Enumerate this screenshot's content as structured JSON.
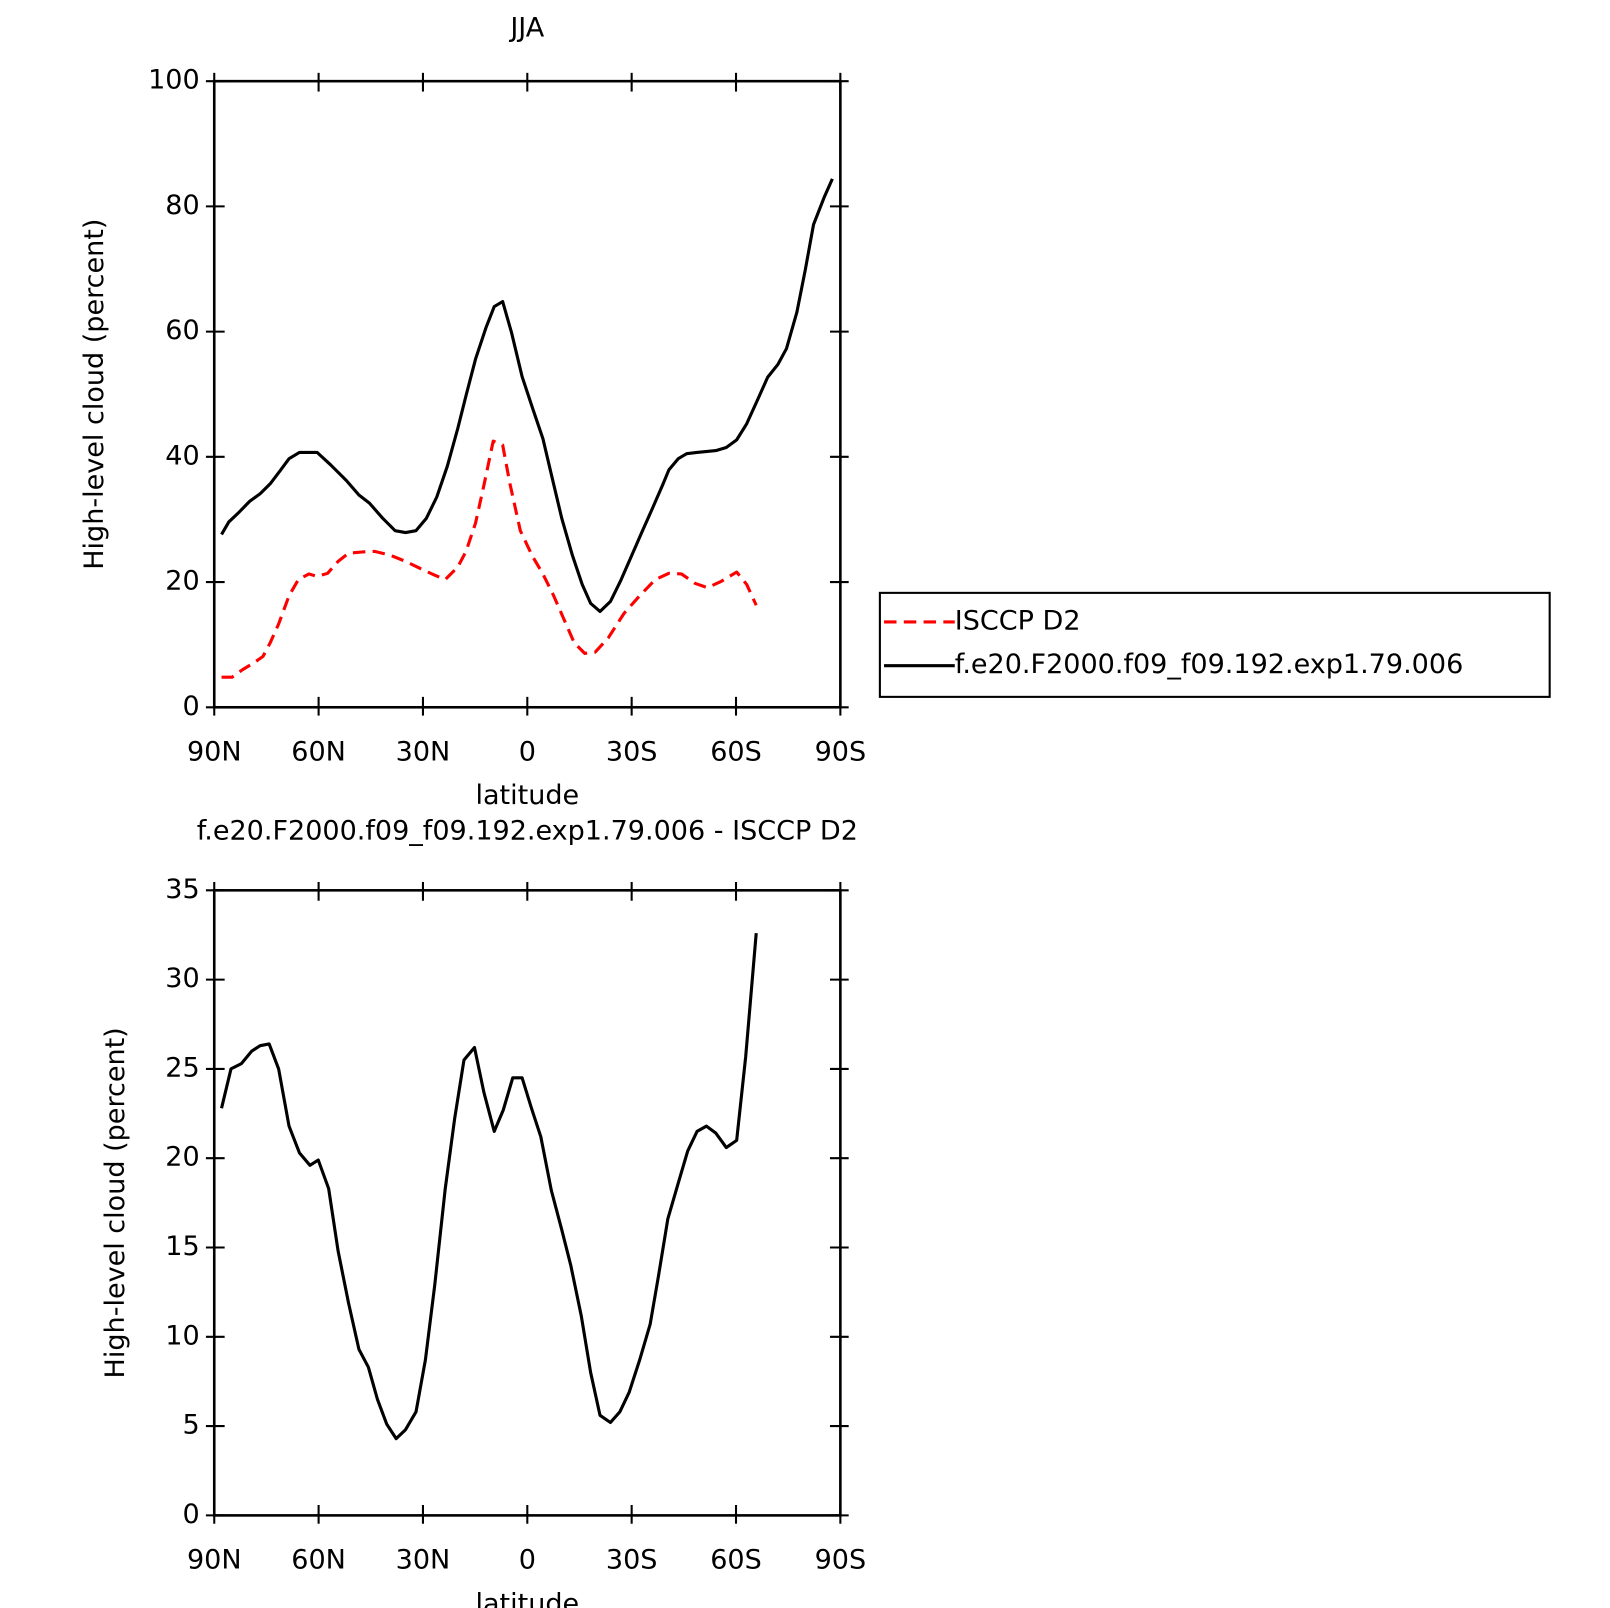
{
  "chart_data": [
    {
      "type": "line",
      "title": "JJA",
      "x_label": "latitude",
      "y_label": "High-level cloud (percent)",
      "xlim": [
        90,
        -90
      ],
      "ylim": [
        0,
        100
      ],
      "xticks": [
        {
          "value": 90,
          "label": "90N"
        },
        {
          "value": 60,
          "label": "60N"
        },
        {
          "value": 30,
          "label": "30N"
        },
        0,
        {
          "value": -30,
          "label": "30S"
        },
        {
          "value": -60,
          "label": "60S"
        },
        {
          "value": -90,
          "label": "90S"
        }
      ],
      "yticks": [
        0,
        20,
        40,
        60,
        80,
        100
      ],
      "legend": "right",
      "series": [
        {
          "name": "ISCCP D2",
          "color": "#ff0000",
          "dash": "dashed",
          "x": [
            87.9,
            84.9,
            81.9,
            78.9,
            76.0,
            73.9,
            71.5,
            68.5,
            65.8,
            62.8,
            60.4,
            57.4,
            54.4,
            51.4,
            47.5,
            43.9,
            39.5,
            35.0,
            30.5,
            26.6,
            23.6,
            20.0,
            17.6,
            14.9,
            12.5,
            9.8,
            7.1,
            5.0,
            2.0,
            -1.5,
            -4.5,
            -7.5,
            -10.5,
            -13.5,
            -16.5,
            -19.5,
            -23.3,
            -27.8,
            -32.3,
            -36.8,
            -40.7,
            -44.3,
            -48.2,
            -51.8,
            -55.7,
            -60.2,
            -63.1,
            -65.8
          ],
          "values": [
            4.8,
            4.8,
            6.0,
            7.0,
            8.1,
            10.3,
            13.3,
            17.8,
            20.4,
            21.3,
            20.9,
            21.4,
            23.3,
            24.6,
            24.8,
            24.9,
            24.3,
            23.3,
            22.1,
            21.1,
            20.4,
            22.4,
            24.9,
            29.4,
            35.4,
            42.5,
            41.9,
            35.7,
            28.2,
            24.1,
            21.3,
            17.9,
            14.1,
            10.3,
            8.6,
            8.8,
            11.1,
            15.0,
            17.8,
            20.4,
            21.4,
            21.3,
            19.8,
            19.1,
            20.1,
            21.6,
            19.6,
            16.3
          ]
        },
        {
          "name": "f.e20.F2000.f09_f09.192.exp1.79.006",
          "color": "#000000",
          "dash": "solid",
          "x": [
            87.9,
            85.8,
            82.8,
            79.8,
            76.8,
            73.9,
            70.9,
            68.5,
            65.5,
            60.4,
            56.5,
            52.0,
            48.4,
            45.4,
            41.6,
            38.0,
            35.0,
            32.0,
            29.0,
            26.0,
            23.0,
            20.0,
            17.6,
            14.9,
            11.9,
            9.5,
            7.1,
            4.5,
            1.5,
            -1.5,
            -4.5,
            -6.9,
            -9.9,
            -12.9,
            -15.8,
            -18.2,
            -20.9,
            -23.9,
            -26.9,
            -29.9,
            -32.9,
            -35.9,
            -38.9,
            -40.7,
            -43.4,
            -45.8,
            -48.8,
            -54.2,
            -57.2,
            -60.2,
            -63.1,
            -66.1,
            -69.1,
            -72.1,
            -74.5,
            -77.5,
            -79.9,
            -82.3,
            -85.3,
            -87.7
          ],
          "values": [
            27.6,
            29.6,
            31.2,
            32.9,
            34.1,
            35.7,
            37.9,
            39.7,
            40.7,
            40.7,
            38.7,
            36.2,
            33.9,
            32.6,
            30.2,
            28.2,
            27.9,
            28.2,
            30.2,
            33.6,
            38.5,
            44.5,
            49.8,
            55.6,
            60.6,
            64.0,
            64.8,
            59.8,
            52.8,
            47.8,
            42.9,
            37.2,
            30.2,
            24.4,
            19.6,
            16.6,
            15.3,
            16.9,
            20.3,
            24.1,
            27.9,
            31.7,
            35.5,
            37.9,
            39.7,
            40.5,
            40.7,
            41.0,
            41.5,
            42.7,
            45.3,
            49.0,
            52.7,
            54.8,
            57.3,
            63.1,
            69.8,
            77.1,
            81.4,
            84.4
          ]
        }
      ]
    },
    {
      "type": "line",
      "title": "f.e20.F2000.f09_f09.192.exp1.79.006 - ISCCP D2",
      "x_label": "latitude",
      "y_label": "High-level cloud (percent)",
      "xlim": [
        90,
        -90
      ],
      "ylim": [
        0,
        35
      ],
      "xticks": [
        {
          "value": 90,
          "label": "90N"
        },
        {
          "value": 60,
          "label": "60N"
        },
        {
          "value": 30,
          "label": "30N"
        },
        0,
        {
          "value": -30,
          "label": "30S"
        },
        {
          "value": -60,
          "label": "60S"
        },
        {
          "value": -90,
          "label": "90S"
        }
      ],
      "yticks": [
        0,
        5,
        10,
        15,
        20,
        25,
        30,
        35
      ],
      "color": "#000000",
      "x": [
        87.9,
        85.2,
        82.2,
        79.2,
        76.8,
        74.2,
        71.5,
        68.5,
        65.5,
        62.5,
        60.1,
        57.1,
        54.4,
        51.4,
        48.4,
        45.7,
        43.1,
        40.4,
        37.7,
        35.0,
        32.0,
        29.3,
        26.6,
        23.6,
        20.9,
        18.2,
        15.2,
        12.5,
        9.5,
        6.9,
        4.2,
        1.5,
        -1.2,
        -3.9,
        -6.9,
        -9.9,
        -12.5,
        -15.5,
        -18.2,
        -20.9,
        -23.9,
        -26.6,
        -29.3,
        -32.3,
        -35.3,
        -37.7,
        -40.4,
        -43.4,
        -46.1,
        -48.8,
        -51.5,
        -54.2,
        -57.2,
        -60.2,
        -62.8,
        -65.8
      ],
      "values": [
        22.8,
        25.0,
        25.3,
        26.0,
        26.3,
        26.4,
        25.0,
        21.8,
        20.3,
        19.6,
        19.9,
        18.3,
        14.8,
        11.9,
        9.3,
        8.3,
        6.5,
        5.1,
        4.3,
        4.8,
        5.8,
        8.7,
        12.9,
        18.3,
        22.2,
        25.5,
        26.2,
        23.7,
        21.5,
        22.7,
        24.5,
        24.5,
        22.8,
        21.2,
        18.2,
        16.0,
        14.0,
        11.2,
        8.0,
        5.6,
        5.2,
        5.8,
        6.9,
        8.7,
        10.7,
        13.4,
        16.6,
        18.6,
        20.4,
        21.5,
        21.8,
        21.4,
        20.6,
        21.0,
        25.7,
        32.6
      ]
    }
  ]
}
